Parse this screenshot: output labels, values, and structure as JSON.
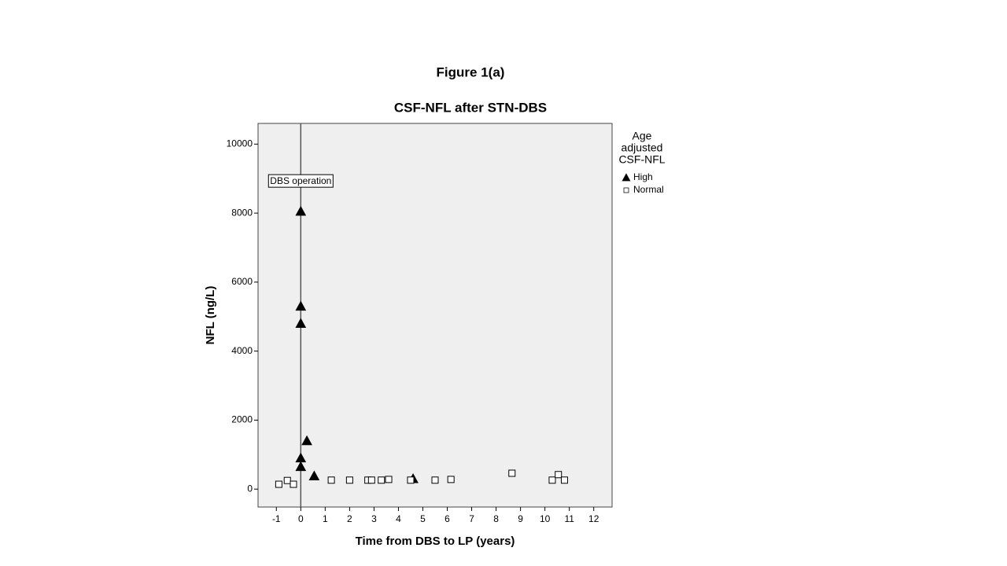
{
  "chart_data": {
    "type": "scatter",
    "suptitle": "Figure 1(a)",
    "title": "CSF-NFL after STN-DBS",
    "x_label": "Time from DBS to LP (years)",
    "y_label": "NFL (ng/L)",
    "xlim": [
      -1.75,
      12.75
    ],
    "ylim": [
      -520,
      10600
    ],
    "xticks": [
      -1,
      0,
      1,
      2,
      3,
      4,
      5,
      6,
      7,
      8,
      9,
      10,
      11,
      12
    ],
    "yticks": [
      0,
      2000,
      4000,
      6000,
      8000,
      10000
    ],
    "background": "#efefef",
    "legend_title": [
      "Age",
      "adjusted",
      "CSF-NFL"
    ],
    "legend_position": "outside right",
    "reference_line": {
      "x": 0,
      "label": "DBS operation"
    },
    "series": [
      {
        "name": "High",
        "marker": "triangle",
        "color": "#000000",
        "x": [
          0,
          0,
          0,
          0.25,
          0,
          0,
          0.55,
          4.6
        ],
        "values": [
          8050,
          5300,
          4800,
          1400,
          900,
          650,
          380,
          300
        ]
      },
      {
        "name": "Normal",
        "marker": "square",
        "color": "#000000",
        "x": [
          -0.9,
          -0.55,
          -0.3,
          1.25,
          2.0,
          2.75,
          2.9,
          3.3,
          3.6,
          4.5,
          5.5,
          6.15,
          8.65,
          10.3,
          10.55,
          10.8
        ],
        "values": [
          140,
          250,
          140,
          260,
          260,
          260,
          260,
          260,
          280,
          260,
          260,
          280,
          460,
          260,
          420,
          260
        ]
      }
    ]
  }
}
